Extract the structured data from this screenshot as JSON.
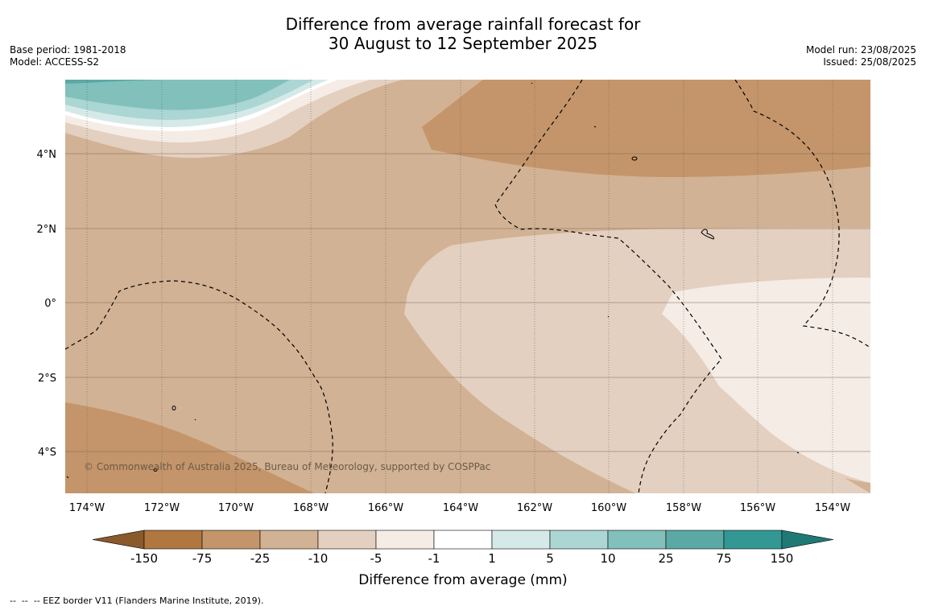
{
  "title": {
    "line1": "Difference from average rainfall forecast for",
    "line2": "30 August to 12 September 2025"
  },
  "meta_left": {
    "base_period": "Base period: 1981-2018",
    "model": "Model: ACCESS-S2"
  },
  "meta_right": {
    "model_run": "Model run: 23/08/2025",
    "issued": "Issued: 25/08/2025"
  },
  "map": {
    "lon_labels": [
      "174°W",
      "172°W",
      "170°W",
      "168°W",
      "166°W",
      "164°W",
      "162°W",
      "160°W",
      "158°W",
      "156°W",
      "154°W"
    ],
    "lat_labels": [
      "4°N",
      "2°N",
      "0°",
      "2°S",
      "4°S"
    ],
    "copyright": "© Commonwealth of Australia 2025, Bureau of Meteorology, supported by COSPPac"
  },
  "colorbar": {
    "ticks": [
      "-150",
      "-75",
      "-25",
      "-10",
      "-5",
      "-1",
      "1",
      "5",
      "10",
      "25",
      "75",
      "150"
    ],
    "colors": [
      "#8a5a2b",
      "#b07840",
      "#c4956a",
      "#d2b294",
      "#e4d0c0",
      "#f5ece6",
      "#ffffff",
      "#d5eae8",
      "#abd6d3",
      "#82c0bc",
      "#5ba9a5",
      "#339894",
      "#1f7a76"
    ],
    "label": "Difference from average (mm)"
  },
  "footer": "--  --  -- EEZ border V11 (Flanders Marine Institute, 2019)."
}
